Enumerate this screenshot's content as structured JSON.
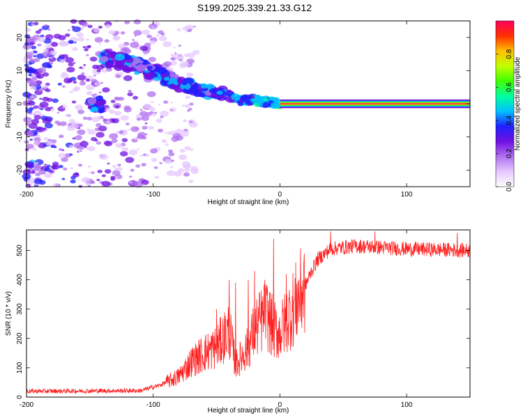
{
  "title": "S199.2025.339.21.33.G12",
  "chart_data": [
    {
      "type": "heatmap",
      "name": "spectrogram",
      "xlabel": "Height of straight line (km)",
      "ylabel": "Frequency (Hz)",
      "xlim": [
        -200,
        150
      ],
      "ylim": [
        -25,
        25
      ],
      "xticks": [
        -200,
        -100,
        0,
        100
      ],
      "yticks": [
        -20,
        -10,
        0,
        10,
        20
      ],
      "colorbar": {
        "label": "Normalized spectral amplitude",
        "range": [
          0,
          1
        ],
        "ticks": [
          0.0,
          0.2,
          0.4,
          0.6,
          0.8
        ],
        "tick_labels": [
          "0.0",
          "0.2",
          "0.4",
          "0.6",
          "0.8"
        ],
        "colormap": [
          "#ffffff",
          "#e6c8ff",
          "#b070f0",
          "#7010e0",
          "#2020ff",
          "#00c0ff",
          "#00ffa0",
          "#40ff00",
          "#c0ff00",
          "#ffc000",
          "#ff3000",
          "#ff0060"
        ]
      },
      "ridge": {
        "description": "frequency track converging to 0 Hz",
        "points": [
          [
            -140,
            14
          ],
          [
            -120,
            12
          ],
          [
            -100,
            10
          ],
          [
            -80,
            6
          ],
          [
            -60,
            4
          ],
          [
            -45,
            3
          ],
          [
            -30,
            1
          ],
          [
            -15,
            1
          ],
          [
            0,
            0
          ],
          [
            150,
            0
          ]
        ]
      },
      "carrier_line": {
        "x_start": 0,
        "x_end": 150,
        "frequency": 0,
        "amplitude": 1.0
      }
    },
    {
      "type": "line",
      "name": "snr",
      "xlabel": "Height of straight line (km)",
      "ylabel": "SNR (10 * v/v)",
      "xlim": [
        -200,
        150
      ],
      "ylim": [
        0,
        570
      ],
      "xticks": [
        -200,
        -100,
        0,
        100
      ],
      "yticks": [
        0,
        100,
        200,
        300,
        400,
        500
      ],
      "color": "#ff2020",
      "profile": [
        [
          -200,
          20
        ],
        [
          -110,
          22
        ],
        [
          -95,
          40
        ],
        [
          -80,
          70
        ],
        [
          -70,
          120
        ],
        [
          -60,
          150
        ],
        [
          -50,
          170
        ],
        [
          -45,
          200
        ],
        [
          -40,
          230
        ],
        [
          -35,
          110
        ],
        [
          -30,
          140
        ],
        [
          -25,
          170
        ],
        [
          -20,
          230
        ],
        [
          -15,
          260
        ],
        [
          -10,
          280
        ],
        [
          -5,
          230
        ],
        [
          0,
          220
        ],
        [
          5,
          260
        ],
        [
          10,
          300
        ],
        [
          15,
          340
        ],
        [
          20,
          380
        ],
        [
          25,
          430
        ],
        [
          30,
          470
        ],
        [
          40,
          505
        ],
        [
          60,
          515
        ],
        [
          100,
          505
        ],
        [
          150,
          500
        ]
      ],
      "spikes": [
        [
          -50,
          300
        ],
        [
          -40,
          400
        ],
        [
          -35,
          390
        ],
        [
          -25,
          400
        ],
        [
          -20,
          430
        ],
        [
          -12,
          400
        ],
        [
          -5,
          540
        ],
        [
          5,
          420
        ],
        [
          40,
          565
        ],
        [
          75,
          565
        ],
        [
          140,
          560
        ]
      ]
    }
  ]
}
